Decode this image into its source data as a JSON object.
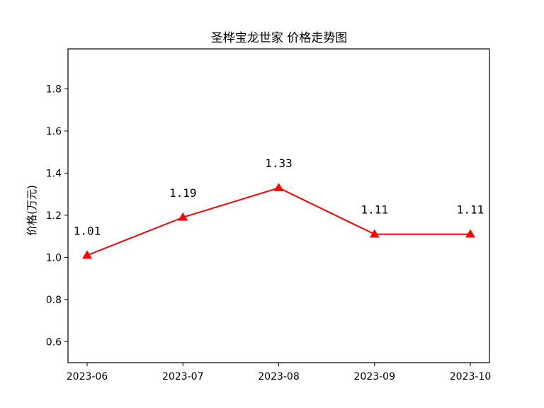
{
  "chart_data": {
    "type": "line",
    "title": "圣桦宝龙世家 价格走势图",
    "xlabel": "",
    "ylabel": "价格(万元)",
    "categories": [
      "2023-06",
      "2023-07",
      "2023-08",
      "2023-09",
      "2023-10"
    ],
    "series": [
      {
        "values": [
          1.01,
          1.19,
          1.33,
          1.11,
          1.11
        ],
        "labels": [
          "1.01",
          "1.19",
          "1.33",
          "1.11",
          "1.11"
        ],
        "color": "#ff0000",
        "marker": "triangle"
      }
    ],
    "ylim": [
      0.5,
      1.99
    ],
    "yticks": [
      "0.6",
      "0.8",
      "1.0",
      "1.2",
      "1.4",
      "1.6",
      "1.8"
    ],
    "grid": false,
    "legend": "none"
  }
}
